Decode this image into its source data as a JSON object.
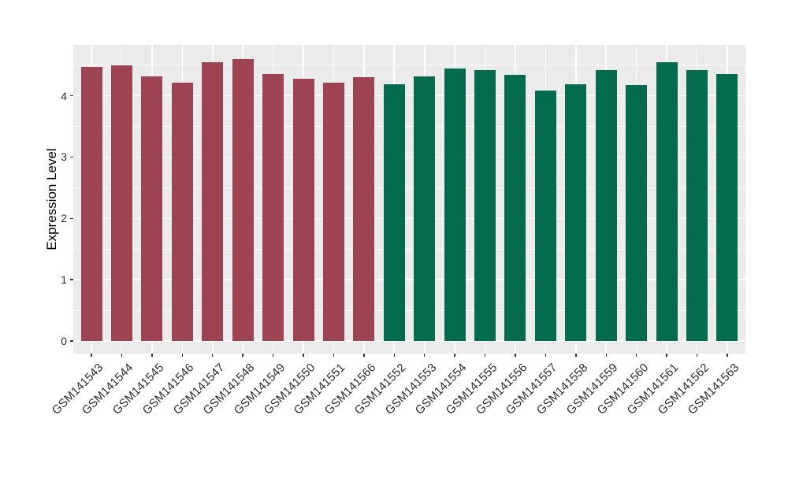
{
  "chart_data": {
    "type": "bar",
    "title": "",
    "xlabel": "",
    "ylabel": "Expression Level",
    "categories": [
      "GSM141543",
      "GSM141544",
      "GSM141545",
      "GSM141546",
      "GSM141547",
      "GSM141548",
      "GSM141549",
      "GSM141550",
      "GSM141551",
      "GSM141566",
      "GSM141552",
      "GSM141553",
      "GSM141554",
      "GSM141555",
      "GSM141556",
      "GSM141557",
      "GSM141558",
      "GSM141559",
      "GSM141560",
      "GSM141561",
      "GSM141562",
      "GSM141563"
    ],
    "values": [
      4.47,
      4.49,
      4.32,
      4.22,
      4.55,
      4.6,
      4.36,
      4.28,
      4.21,
      4.3,
      4.19,
      4.31,
      4.45,
      4.42,
      4.34,
      4.08,
      4.19,
      4.42,
      4.18,
      4.55,
      4.42,
      4.36
    ],
    "bar_colors": [
      "#9E4352",
      "#9E4352",
      "#9E4352",
      "#9E4352",
      "#9E4352",
      "#9E4352",
      "#9E4352",
      "#9E4352",
      "#9E4352",
      "#9E4352",
      "#046B4E",
      "#046B4E",
      "#046B4E",
      "#046B4E",
      "#046B4E",
      "#046B4E",
      "#046B4E",
      "#046B4E",
      "#046B4E",
      "#046B4E",
      "#046B4E",
      "#046B4E"
    ],
    "group_colors": {
      "left_group": "#9E4352",
      "right_group": "#046B4E"
    },
    "ylim": [
      0,
      4.83
    ],
    "yticks": [
      0,
      1,
      2,
      3,
      4
    ],
    "minor_yticks": [
      0.5,
      1.5,
      2.5,
      3.5,
      4.5
    ],
    "bar_width_fraction": 0.7,
    "grid": true,
    "legend": "none",
    "x_label_angle": 45,
    "panel_background": "#EBEBEB",
    "gridline_color": "#FFFFFF",
    "axis_tick_color": "#333333",
    "axis_text_color": "#303030"
  }
}
